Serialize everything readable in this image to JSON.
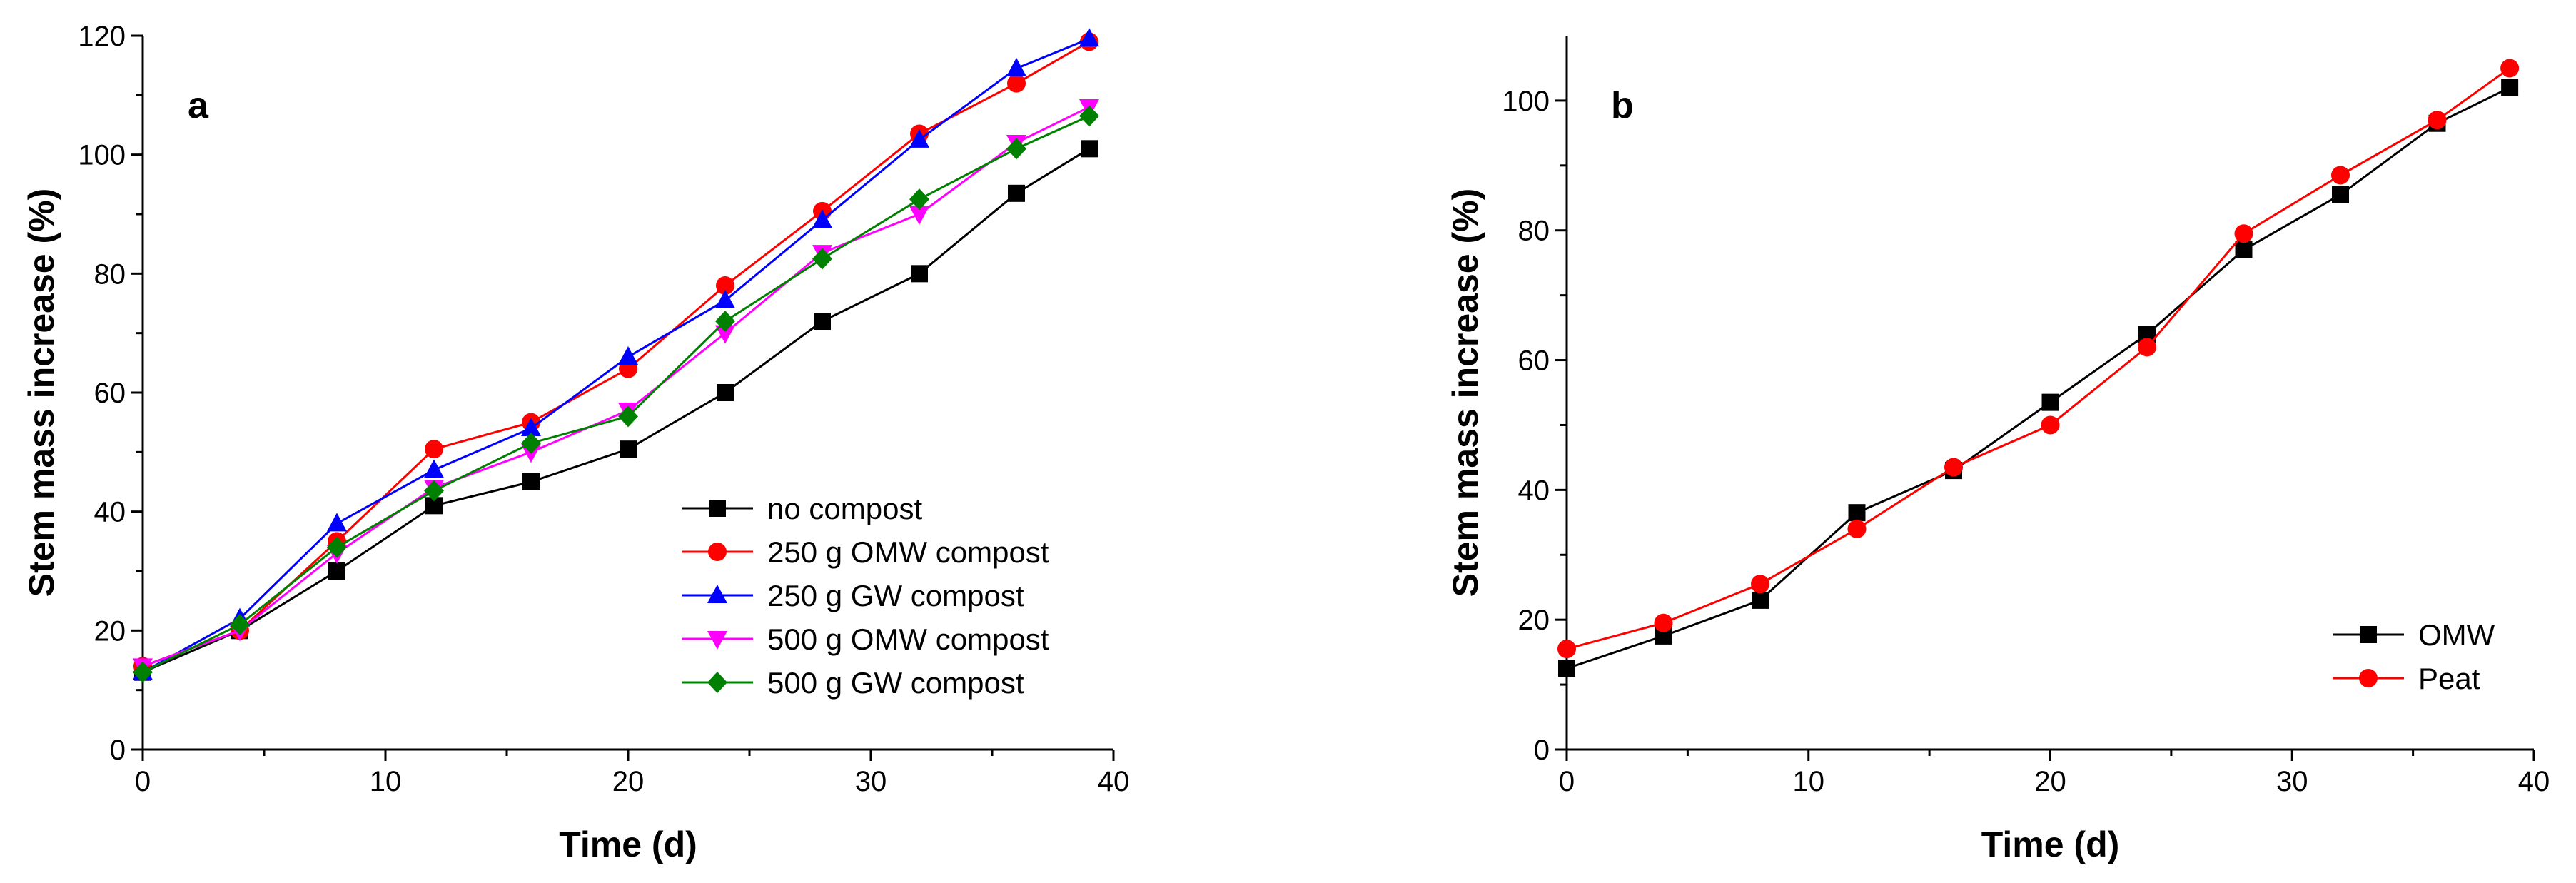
{
  "chart_data": [
    {
      "type": "line",
      "panel_label": "a",
      "title": "",
      "xlabel": "Time (d)",
      "ylabel": "Stem mass increase (%)",
      "xlim": [
        0,
        40
      ],
      "ylim": [
        0,
        120
      ],
      "x_ticks": [
        0,
        10,
        20,
        30,
        40
      ],
      "y_ticks": [
        0,
        20,
        40,
        60,
        80,
        100,
        120
      ],
      "grid": false,
      "legend_position": "bottom-right",
      "series": [
        {
          "name": "no compost",
          "color": "#000000",
          "marker": "square",
          "x": [
            0,
            4,
            8,
            12,
            16,
            20,
            24,
            28,
            32,
            36,
            39
          ],
          "values": [
            13,
            20,
            30,
            41,
            45,
            50.5,
            60,
            72,
            80,
            93.5,
            101
          ]
        },
        {
          "name": "250 g OMW compost",
          "color": "#ff0000",
          "marker": "circle",
          "x": [
            0,
            4,
            8,
            12,
            16,
            20,
            24,
            28,
            32,
            36,
            39
          ],
          "values": [
            14,
            20,
            35,
            50.5,
            55,
            64,
            78,
            90.5,
            103.5,
            112,
            119
          ]
        },
        {
          "name": "250 g GW compost",
          "color": "#0000ff",
          "marker": "triangle-up",
          "x": [
            0,
            4,
            8,
            12,
            16,
            20,
            24,
            28,
            32,
            36,
            39
          ],
          "values": [
            13,
            22,
            38,
            47,
            54,
            66,
            75.5,
            89,
            102.5,
            114.5,
            119.5
          ]
        },
        {
          "name": "500 g OMW compost",
          "color": "#ff00ff",
          "marker": "triangle-down",
          "x": [
            0,
            4,
            8,
            12,
            16,
            20,
            24,
            28,
            32,
            36,
            39
          ],
          "values": [
            14,
            20,
            33,
            44,
            50,
            57,
            70,
            83.5,
            90,
            102,
            108
          ]
        },
        {
          "name": "500 g GW compost",
          "color": "#008000",
          "marker": "diamond",
          "x": [
            0,
            4,
            8,
            12,
            16,
            20,
            24,
            28,
            32,
            36,
            39
          ],
          "values": [
            13,
            21,
            34,
            43.5,
            51.5,
            56,
            72,
            82.5,
            92.5,
            101,
            106.5
          ]
        }
      ]
    },
    {
      "type": "line",
      "panel_label": "b",
      "title": "",
      "xlabel": "Time (d)",
      "ylabel": "Stem mass increase (%)",
      "xlim": [
        0,
        40
      ],
      "ylim": [
        0,
        110
      ],
      "x_ticks": [
        0,
        10,
        20,
        30,
        40
      ],
      "y_ticks": [
        0,
        20,
        40,
        60,
        80,
        100
      ],
      "grid": false,
      "legend_position": "bottom-right",
      "series": [
        {
          "name": "OMW",
          "color": "#000000",
          "marker": "square",
          "x": [
            0,
            4,
            8,
            12,
            16,
            20,
            24,
            28,
            32,
            36,
            39
          ],
          "values": [
            12.5,
            17.5,
            23,
            36.5,
            43,
            53.5,
            64,
            77,
            85.5,
            96.5,
            102
          ]
        },
        {
          "name": "Peat",
          "color": "#ff0000",
          "marker": "circle",
          "x": [
            0,
            4,
            8,
            12,
            16,
            20,
            24,
            28,
            32,
            36,
            39
          ],
          "values": [
            15.5,
            19.5,
            25.5,
            34,
            43.5,
            50,
            62,
            79.5,
            88.5,
            97,
            105
          ]
        }
      ]
    }
  ]
}
